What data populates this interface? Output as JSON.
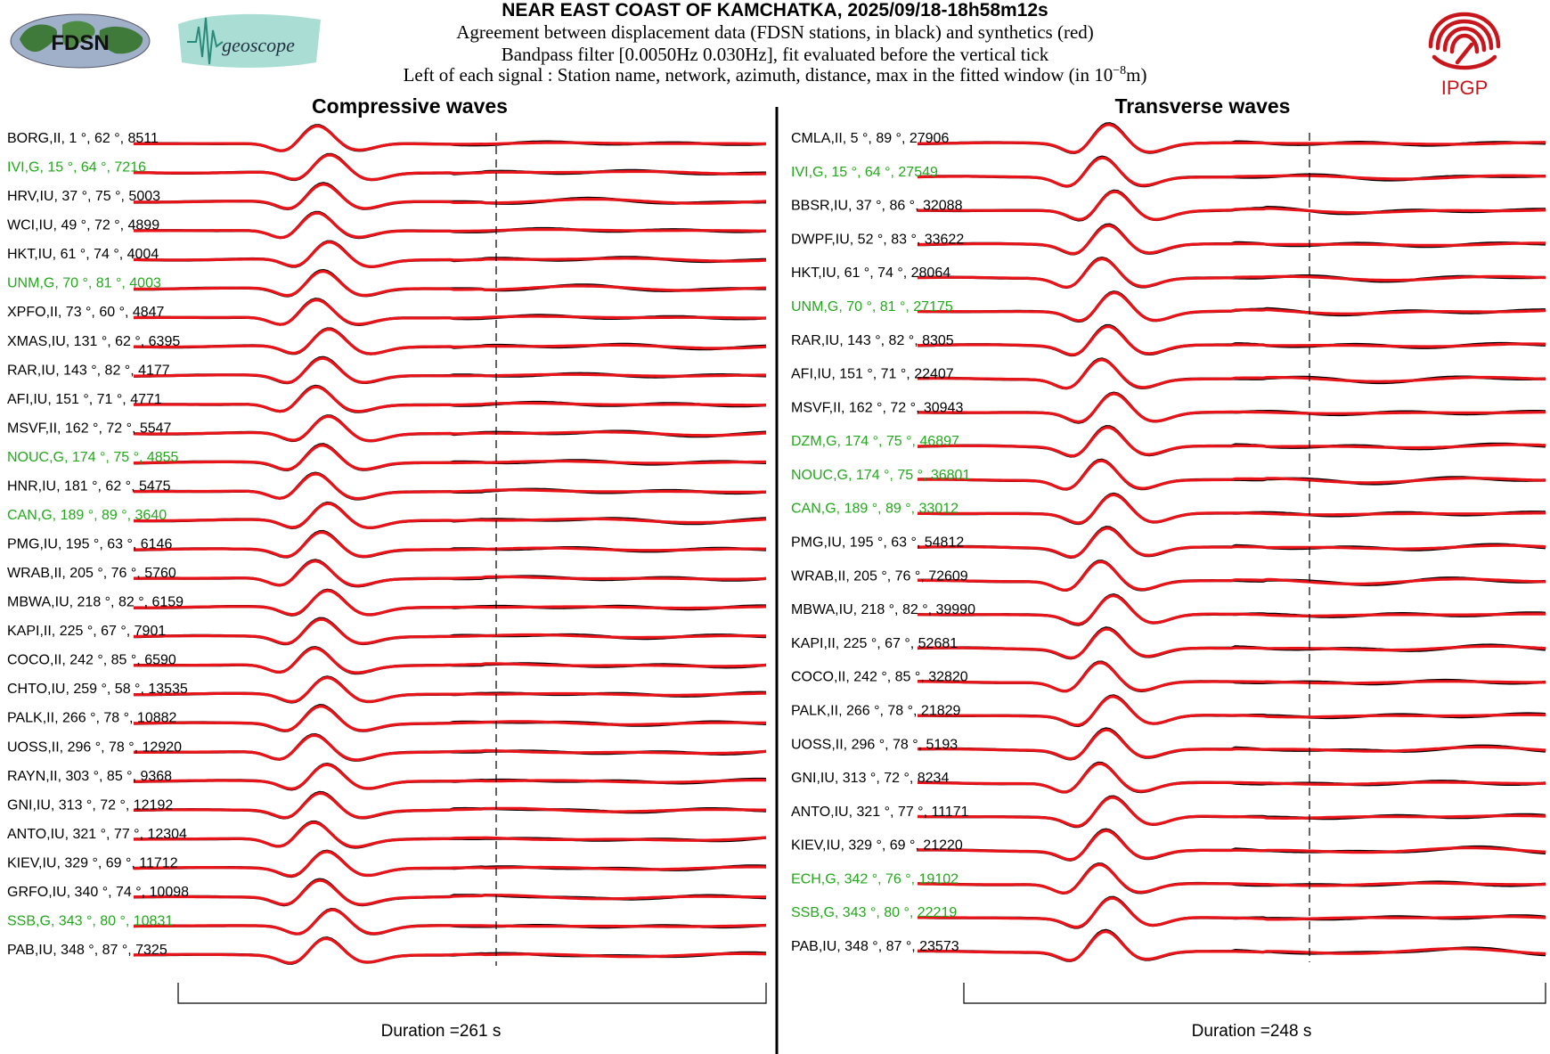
{
  "header": {
    "title": "NEAR EAST COAST OF KAMCHATKA, 2025/09/18-18h58m12s",
    "line1": "Agreement between displacement data (FDSN stations, in black) and synthetics (red)",
    "line2": "Bandpass filter [0.0050Hz 0.030Hz], fit evaluated before the vertical tick",
    "line3_prefix": "Left of each signal : Station name, network, azimuth, distance, max in the fitted window (in 10",
    "line3_exp": "−8",
    "line3_suffix": "m)"
  },
  "logos": {
    "fdsn": "FDSN",
    "geoscope": "geoscope",
    "ipgp": "IPGP"
  },
  "colors": {
    "data": "#000000",
    "synthetic": "#e8141a",
    "highlight_station": "#22a81b",
    "ipgp": "#c8161d"
  },
  "chart_data": [
    {
      "type": "line",
      "title": "Compressive waves",
      "duration_label": "Duration =261 s",
      "series_legend": [
        "data (black)",
        "synthetics (red)"
      ],
      "stations": [
        {
          "label": "BORG,II, 1 °, 62 °, 8511",
          "green": false
        },
        {
          "label": "IVI,G, 15 °, 64 °, 7216",
          "green": true
        },
        {
          "label": "HRV,IU, 37 °, 75 °, 5003",
          "green": false
        },
        {
          "label": "WCI,IU, 49 °, 72 °, 4899",
          "green": false
        },
        {
          "label": "HKT,IU, 61 °, 74 °, 4004",
          "green": false
        },
        {
          "label": "UNM,G, 70 °, 81 °, 4003",
          "green": true
        },
        {
          "label": "XPFO,II, 73 °, 60 °, 4847",
          "green": false
        },
        {
          "label": "XMAS,IU, 131 °, 62 °, 6395",
          "green": false
        },
        {
          "label": "RAR,IU, 143 °, 82 °, 4177",
          "green": false
        },
        {
          "label": "AFI,IU, 151 °, 71 °, 4771",
          "green": false
        },
        {
          "label": "MSVF,II, 162 °, 72 °, 5547",
          "green": false
        },
        {
          "label": "NOUC,G, 174 °, 75 °, 4855",
          "green": true
        },
        {
          "label": "HNR,IU, 181 °, 62 °, 5475",
          "green": false
        },
        {
          "label": "CAN,G, 189 °, 89 °, 3640",
          "green": true
        },
        {
          "label": "PMG,IU, 195 °, 63 °, 6146",
          "green": false
        },
        {
          "label": "WRAB,II, 205 °, 76 °, 5760",
          "green": false
        },
        {
          "label": "MBWA,IU, 218 °, 82 °, 6159",
          "green": false
        },
        {
          "label": "KAPI,II, 225 °, 67 °, 7901",
          "green": false
        },
        {
          "label": "COCO,II, 242 °, 85 °, 6590",
          "green": false
        },
        {
          "label": "CHTO,IU, 259 °, 58 °, 13535",
          "green": false
        },
        {
          "label": "PALK,II, 266 °, 78 °, 10882",
          "green": false
        },
        {
          "label": "UOSS,II, 296 °, 78 °, 12920",
          "green": false
        },
        {
          "label": "RAYN,II, 303 °, 85 °, 9368",
          "green": false
        },
        {
          "label": "GNI,IU, 313 °, 72 °, 12192",
          "green": false
        },
        {
          "label": "ANTO,IU, 321 °, 77 °, 12304",
          "green": false
        },
        {
          "label": "KIEV,IU, 329 °, 69 °, 11712",
          "green": false
        },
        {
          "label": "GRFO,IU, 340 °, 74 °, 10098",
          "green": false
        },
        {
          "label": "SSB,G, 343 °, 80 °, 10831",
          "green": true
        },
        {
          "label": "PAB,IU, 348 °, 87 °, 7325",
          "green": false
        }
      ]
    },
    {
      "type": "line",
      "title": "Transverse waves",
      "duration_label": "Duration =248 s",
      "series_legend": [
        "data (black)",
        "synthetics (red)"
      ],
      "stations": [
        {
          "label": "CMLA,II, 5 °, 89 °, 27906",
          "green": false
        },
        {
          "label": "IVI,G, 15 °, 64 °, 27549",
          "green": true
        },
        {
          "label": "BBSR,IU, 37 °, 86 °, 32088",
          "green": false
        },
        {
          "label": "DWPF,IU, 52 °, 83 °, 33622",
          "green": false
        },
        {
          "label": "HKT,IU, 61 °, 74 °, 28064",
          "green": false
        },
        {
          "label": "UNM,G, 70 °, 81 °, 27175",
          "green": true
        },
        {
          "label": "RAR,IU, 143 °, 82 °, 8305",
          "green": false
        },
        {
          "label": "AFI,IU, 151 °, 71 °, 22407",
          "green": false
        },
        {
          "label": "MSVF,II, 162 °, 72 °, 30943",
          "green": false
        },
        {
          "label": "DZM,G, 174 °, 75 °, 46897",
          "green": true
        },
        {
          "label": "NOUC,G, 174 °, 75 °, 36801",
          "green": true
        },
        {
          "label": "CAN,G, 189 °, 89 °, 33012",
          "green": true
        },
        {
          "label": "PMG,IU, 195 °, 63 °, 54812",
          "green": false
        },
        {
          "label": "WRAB,II, 205 °, 76 °, 72609",
          "green": false
        },
        {
          "label": "MBWA,IU, 218 °, 82 °, 39990",
          "green": false
        },
        {
          "label": "KAPI,II, 225 °, 67 °, 52681",
          "green": false
        },
        {
          "label": "COCO,II, 242 °, 85 °, 32820",
          "green": false
        },
        {
          "label": "PALK,II, 266 °, 78 °, 21829",
          "green": false
        },
        {
          "label": "UOSS,II, 296 °, 78 °, 5193",
          "green": false
        },
        {
          "label": "GNI,IU, 313 °, 72 °, 8234",
          "green": false
        },
        {
          "label": "ANTO,IU, 321 °, 77 °, 11171",
          "green": false
        },
        {
          "label": "KIEV,IU, 329 °, 69 °, 21220",
          "green": false
        },
        {
          "label": "ECH,G, 342 °, 76 °, 19102",
          "green": true
        },
        {
          "label": "SSB,G, 343 °, 80 °, 22219",
          "green": true
        },
        {
          "label": "PAB,IU, 348 °, 87 °, 23573",
          "green": false
        }
      ]
    }
  ]
}
